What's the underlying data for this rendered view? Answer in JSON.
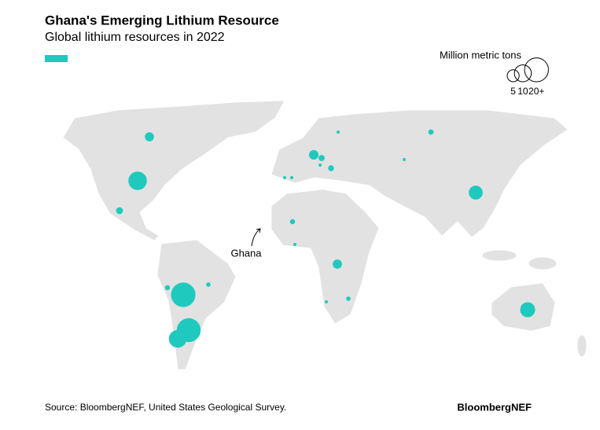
{
  "header": {
    "title": "Ghana's Emerging Lithium Resource",
    "subtitle": "Global lithium resources in 2022"
  },
  "legend": {
    "title": "Million metric tons",
    "sizes": [
      5,
      10,
      {
        "value": 20,
        "label": "20+"
      }
    ]
  },
  "color": "#20c9be",
  "bubble_values": [
    2.9,
    12,
    1.7,
    0.9,
    21,
    0.7,
    11,
    20,
    0.3,
    0.3,
    3.2,
    1.3,
    0.3,
    1.2,
    0.07,
    1,
    0.05,
    6.8,
    0.9,
    0.2,
    3,
    0.7,
    0.2,
    7.9
  ],
  "annotation": "Ghana",
  "footer": {
    "source": "Source: BloombergNEF, United States Geological Survey.",
    "brand": "BloombergNEF"
  }
}
